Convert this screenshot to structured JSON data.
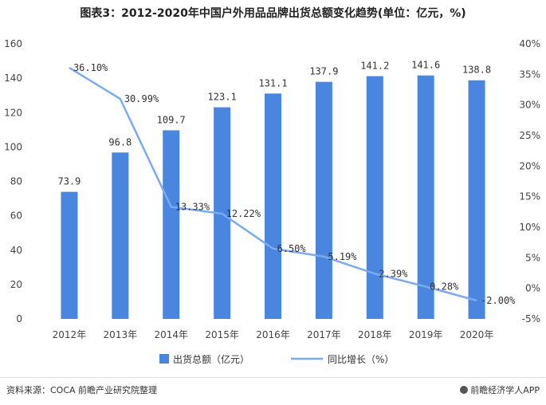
{
  "chart_data": {
    "type": "bar+line",
    "title": "图表3：2012-2020年中国户外用品品牌出货总额变化趋势(单位：亿元，%)",
    "categories": [
      "2012年",
      "2013年",
      "2014年",
      "2015年",
      "2016年",
      "2017年",
      "2018年",
      "2019年",
      "2020年"
    ],
    "series": [
      {
        "name": "出货总额（亿元）",
        "type": "bar",
        "axis": "left",
        "values": [
          73.9,
          96.8,
          109.7,
          123.1,
          131.1,
          137.9,
          141.2,
          141.6,
          138.8
        ],
        "labels": [
          "73.9",
          "96.8",
          "109.7",
          "123.1",
          "131.1",
          "137.9",
          "141.2",
          "141.6",
          "138.8"
        ]
      },
      {
        "name": "同比增长（%）",
        "type": "line",
        "axis": "right",
        "values": [
          36.1,
          30.99,
          13.33,
          12.22,
          6.5,
          5.19,
          2.39,
          0.28,
          -2.0
        ],
        "labels": [
          "36.10%",
          "30.99%",
          "13.33%",
          "12.22%",
          "6.50%",
          "5.19%",
          "2.39%",
          "0.28%",
          "-2.00%"
        ]
      }
    ],
    "y_left": {
      "min": 0,
      "max": 160,
      "ticks": [
        "0",
        "20",
        "40",
        "60",
        "80",
        "100",
        "120",
        "140",
        "160"
      ]
    },
    "y_right": {
      "min": -5,
      "max": 40,
      "ticks": [
        "-5%",
        "0%",
        "5%",
        "10%",
        "15%",
        "20%",
        "25%",
        "30%",
        "35%",
        "40%"
      ]
    },
    "legend_position": "bottom",
    "colors": {
      "bar": "#4a86e0",
      "line": "#7aaaf0"
    }
  },
  "footer": {
    "source": "资料来源：COCA 前瞻产业研究院整理",
    "brand": "前瞻经济学人APP"
  }
}
